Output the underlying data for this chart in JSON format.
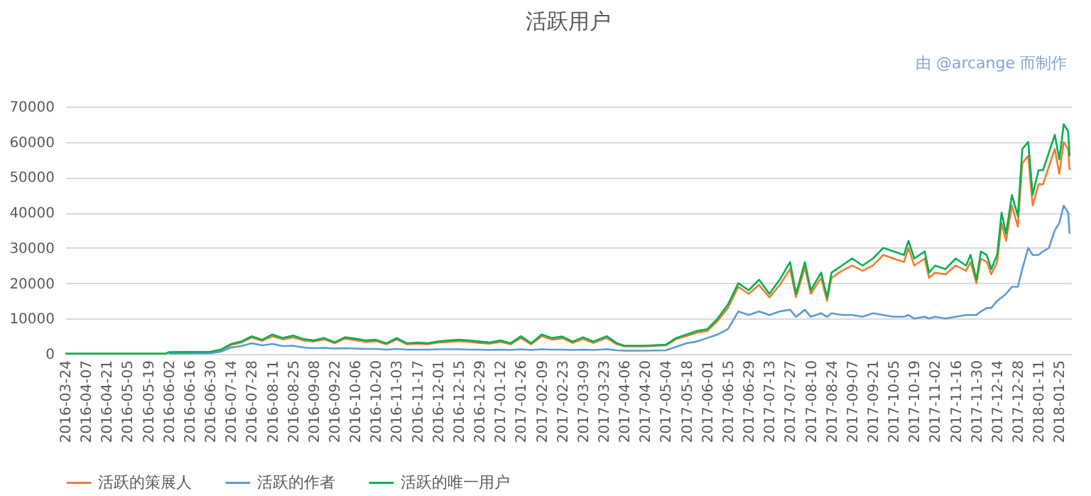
{
  "chart_data": {
    "type": "line",
    "title": "活跃用户",
    "annotations": [
      "由 @arcange 而制作"
    ],
    "x": [
      "2016-03-24",
      "2016-05-31",
      "2016-06-02",
      "2016-06-30",
      "2016-07-07",
      "2016-07-14",
      "2016-07-21",
      "2016-07-28",
      "2016-08-04",
      "2016-08-11",
      "2016-08-18",
      "2016-08-25",
      "2016-09-01",
      "2016-09-08",
      "2016-09-15",
      "2016-09-22",
      "2016-09-29",
      "2016-10-06",
      "2016-10-13",
      "2016-10-20",
      "2016-10-27",
      "2016-11-03",
      "2016-11-10",
      "2016-11-17",
      "2016-11-24",
      "2016-12-01",
      "2016-12-08",
      "2016-12-15",
      "2016-12-22",
      "2016-12-29",
      "2017-01-05",
      "2017-01-12",
      "2017-01-19",
      "2017-01-26",
      "2017-02-02",
      "2017-02-09",
      "2017-02-16",
      "2017-02-23",
      "2017-03-02",
      "2017-03-09",
      "2017-03-16",
      "2017-03-25",
      "2017-04-01",
      "2017-04-06",
      "2017-04-20",
      "2017-05-04",
      "2017-05-11",
      "2017-05-18",
      "2017-05-25",
      "2017-06-01",
      "2017-06-08",
      "2017-06-15",
      "2017-06-22",
      "2017-06-29",
      "2017-07-06",
      "2017-07-13",
      "2017-07-20",
      "2017-07-27",
      "2017-07-31",
      "2017-08-06",
      "2017-08-10",
      "2017-08-17",
      "2017-08-21",
      "2017-08-24",
      "2017-08-31",
      "2017-09-07",
      "2017-09-14",
      "2017-09-21",
      "2017-09-28",
      "2017-10-05",
      "2017-10-12",
      "2017-10-15",
      "2017-10-19",
      "2017-10-26",
      "2017-10-29",
      "2017-11-02",
      "2017-11-09",
      "2017-11-16",
      "2017-11-23",
      "2017-11-26",
      "2017-11-30",
      "2017-12-03",
      "2017-12-07",
      "2017-12-10",
      "2017-12-14",
      "2017-12-17",
      "2017-12-20",
      "2017-12-24",
      "2017-12-28",
      "2017-12-31",
      "2018-01-04",
      "2018-01-07",
      "2018-01-11",
      "2018-01-14",
      "2018-01-18",
      "2018-01-22",
      "2018-01-25",
      "2018-01-28",
      "2018-01-31",
      "2018-02-01"
    ],
    "series": [
      {
        "name": "活跃的策展人",
        "color": "#ed7d31",
        "values": [
          null,
          null,
          null,
          500,
          1000,
          2500,
          3200,
          4600,
          3700,
          5000,
          4100,
          4700,
          3800,
          3500,
          4100,
          3000,
          4300,
          3900,
          3400,
          3600,
          2700,
          4100,
          2700,
          2900,
          2700,
          3200,
          3400,
          3600,
          3400,
          3100,
          2900,
          3400,
          2700,
          4500,
          2700,
          5000,
          4000,
          4400,
          3100,
          4200,
          3100,
          4500,
          2700,
          2100,
          2100,
          2400,
          4200,
          5100,
          6000,
          6500,
          9300,
          13000,
          19000,
          17000,
          19500,
          16000,
          19500,
          24000,
          16000,
          24500,
          17000,
          21500,
          15000,
          21500,
          23500,
          25000,
          23500,
          25000,
          28000,
          27000,
          26000,
          30000,
          25000,
          27000,
          21500,
          23000,
          22500,
          25000,
          23500,
          26000,
          20000,
          27000,
          26000,
          22500,
          26000,
          37000,
          32000,
          42000,
          36000,
          54000,
          56000,
          42000,
          48000,
          48000,
          53000,
          58000,
          51000,
          60000,
          58000,
          52000
        ]
      },
      {
        "name": "活跃的作者",
        "color": "#5b9bd5",
        "values": [
          null,
          null,
          100,
          200,
          600,
          1800,
          2200,
          3000,
          2400,
          2800,
          2200,
          2300,
          1800,
          1600,
          1700,
          1500,
          1600,
          1500,
          1400,
          1400,
          1200,
          1400,
          1200,
          1200,
          1200,
          1300,
          1300,
          1300,
          1200,
          1200,
          1100,
          1200,
          1100,
          1300,
          1100,
          1300,
          1200,
          1200,
          1100,
          1200,
          1100,
          1300,
          1000,
          900,
          900,
          1000,
          2000,
          3000,
          3500,
          4500,
          5500,
          7000,
          12000,
          11000,
          12000,
          11000,
          12000,
          12500,
          10500,
          12500,
          10500,
          11500,
          10500,
          11500,
          11000,
          11000,
          10500,
          11500,
          11000,
          10500,
          10500,
          11000,
          10000,
          10500,
          10000,
          10500,
          10000,
          10500,
          11000,
          11000,
          11000,
          12000,
          13000,
          13000,
          15000,
          16000,
          17000,
          19000,
          19000,
          24000,
          30000,
          28000,
          28000,
          29000,
          30000,
          35000,
          37000,
          42000,
          40000,
          34000
        ]
      },
      {
        "name": "活跃的唯一用户",
        "color": "#00b050",
        "values": [
          100,
          100,
          500,
          600,
          1200,
          2800,
          3500,
          5000,
          4000,
          5500,
          4500,
          5200,
          4200,
          3800,
          4500,
          3300,
          4700,
          4300,
          3800,
          4000,
          3000,
          4500,
          3000,
          3200,
          3000,
          3500,
          3800,
          4000,
          3800,
          3500,
          3200,
          3800,
          3000,
          5000,
          3000,
          5500,
          4500,
          4900,
          3500,
          4700,
          3500,
          5000,
          3000,
          2300,
          2300,
          2600,
          4500,
          5500,
          6500,
          7000,
          10000,
          14000,
          20000,
          18000,
          21000,
          17000,
          21000,
          26000,
          17000,
          26000,
          18000,
          23000,
          16000,
          23000,
          25000,
          27000,
          25000,
          27000,
          30000,
          29000,
          28000,
          32000,
          27000,
          29000,
          23000,
          25000,
          24000,
          27000,
          25000,
          28000,
          21000,
          29000,
          28000,
          24000,
          28000,
          40000,
          34000,
          45000,
          39000,
          58000,
          60000,
          45000,
          52000,
          52000,
          57000,
          62000,
          55000,
          65000,
          63000,
          56000
        ]
      }
    ],
    "xlim": [
      "2016-03-24",
      "2018-02-02"
    ],
    "xticks": [
      "2016-03-24",
      "2016-04-07",
      "2016-04-21",
      "2016-05-05",
      "2016-05-19",
      "2016-06-02",
      "2016-06-16",
      "2016-06-30",
      "2016-07-14",
      "2016-07-28",
      "2016-08-11",
      "2016-08-25",
      "2016-09-08",
      "2016-09-22",
      "2016-10-06",
      "2016-10-20",
      "2016-11-03",
      "2016-11-17",
      "2016-12-01",
      "2016-12-15",
      "2016-12-29",
      "2017-01-12",
      "2017-01-26",
      "2017-02-09",
      "2017-02-23",
      "2017-03-09",
      "2017-03-23",
      "2017-04-06",
      "2017-04-20",
      "2017-05-04",
      "2017-05-18",
      "2017-06-01",
      "2017-06-15",
      "2017-06-29",
      "2017-07-13",
      "2017-07-27",
      "2017-08-10",
      "2017-08-24",
      "2017-09-07",
      "2017-09-21",
      "2017-10-05",
      "2017-10-19",
      "2017-11-02",
      "2017-11-16",
      "2017-11-30",
      "2017-12-14",
      "2017-12-28",
      "2018-01-11",
      "2018-01-25"
    ],
    "ylim": [
      0,
      70000
    ],
    "yticks": [
      0,
      10000,
      20000,
      30000,
      40000,
      50000,
      60000,
      70000
    ],
    "grid": "y",
    "legend": "bottom",
    "marker": "none",
    "line_style": "solid"
  }
}
